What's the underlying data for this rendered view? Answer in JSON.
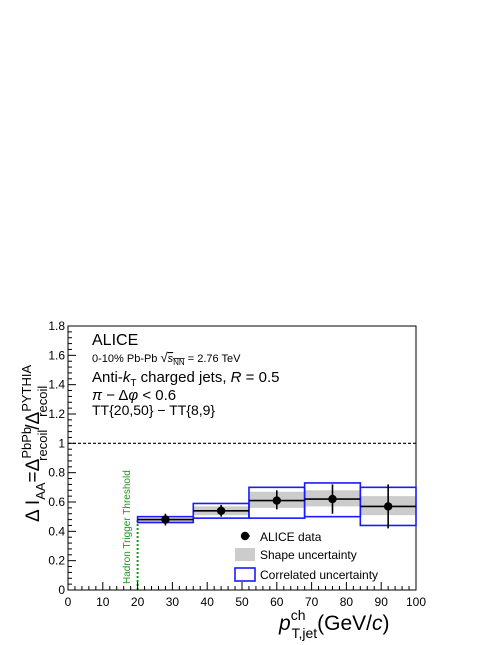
{
  "chart_data": {
    "type": "scatter",
    "xlabel": {
      "main": "p",
      "sup": "ch",
      "sub": "T,jet",
      "units_pre": "(GeV/",
      "units_it": "c",
      "units_post": ")"
    },
    "ylabel": {
      "pre": "Δ I",
      "sub_AA": "AA",
      "eq": "=Δ",
      "sup1": "PbPb",
      "sub1": "recoil",
      "slash": "/Δ",
      "sup2": "PYTHIA",
      "sub2": "recoil"
    },
    "xlim": [
      0,
      100
    ],
    "ylim": [
      0,
      1.8
    ],
    "x_ticks": [
      0,
      10,
      20,
      30,
      40,
      50,
      60,
      70,
      80,
      90,
      100
    ],
    "y_ticks": [
      0,
      0.2,
      0.4,
      0.6,
      0.8,
      1,
      1.2,
      1.4,
      1.6,
      1.8
    ],
    "x_tick_labels": [
      "0",
      "10",
      "20",
      "30",
      "40",
      "50",
      "60",
      "70",
      "80",
      "90",
      "100"
    ],
    "y_tick_labels": [
      "0",
      "0.2",
      "0.4",
      "0.6",
      "0.8",
      "1",
      "1.2",
      "1.4",
      "1.6",
      "1.8"
    ],
    "reference_line_y": 1,
    "threshold_x": 20,
    "threshold_label": "Hadron Trigger Threshold",
    "series": [
      {
        "name": "ALICE data",
        "points": [
          {
            "x": 28,
            "y": 0.48,
            "xlo": 20,
            "xhi": 36,
            "ylo": 0.44,
            "yhi": 0.52
          },
          {
            "x": 44,
            "y": 0.54,
            "xlo": 36,
            "xhi": 52,
            "ylo": 0.5,
            "yhi": 0.58
          },
          {
            "x": 60,
            "y": 0.61,
            "xlo": 52,
            "xhi": 68,
            "ylo": 0.55,
            "yhi": 0.68
          },
          {
            "x": 76,
            "y": 0.62,
            "xlo": 68,
            "xhi": 84,
            "ylo": 0.52,
            "yhi": 0.72
          },
          {
            "x": 92,
            "y": 0.57,
            "xlo": 84,
            "xhi": 100,
            "ylo": 0.42,
            "yhi": 0.72
          }
        ]
      },
      {
        "name": "Shape uncertainty",
        "boxes": [
          {
            "xlo": 20,
            "xhi": 36,
            "ylo": 0.46,
            "yhi": 0.49
          },
          {
            "xlo": 36,
            "xhi": 52,
            "ylo": 0.51,
            "yhi": 0.57
          },
          {
            "xlo": 52,
            "xhi": 68,
            "ylo": 0.56,
            "yhi": 0.67
          },
          {
            "xlo": 68,
            "xhi": 84,
            "ylo": 0.57,
            "yhi": 0.68
          },
          {
            "xlo": 84,
            "xhi": 100,
            "ylo": 0.51,
            "yhi": 0.64
          }
        ]
      },
      {
        "name": "Correlated uncertainty",
        "boxes": [
          {
            "xlo": 20,
            "xhi": 36,
            "ylo": 0.46,
            "yhi": 0.5
          },
          {
            "xlo": 36,
            "xhi": 52,
            "ylo": 0.49,
            "yhi": 0.59
          },
          {
            "xlo": 52,
            "xhi": 68,
            "ylo": 0.49,
            "yhi": 0.7
          },
          {
            "xlo": 68,
            "xhi": 84,
            "ylo": 0.5,
            "yhi": 0.73
          },
          {
            "xlo": 84,
            "xhi": 100,
            "ylo": 0.44,
            "yhi": 0.7
          }
        ]
      }
    ],
    "legend": {
      "position": "bottom-right",
      "entries": [
        "ALICE data",
        "Shape uncertainty",
        "Correlated uncertainty"
      ]
    },
    "colors": {
      "data": "#000000",
      "shape": "#cccccc",
      "correlated": "#1a1aff",
      "threshold": "#1a9a1a",
      "reference": "#000000"
    },
    "annotations": {
      "experiment": "ALICE",
      "line1_pre": "0-10% Pb-Pb ",
      "line1_sqrt": "√",
      "line1_s": "s",
      "line1_sub": "NN",
      "line1_post": " = 2.76 TeV",
      "line2_pre": "Anti-",
      "line2_k": "k",
      "line2_ksub": "T",
      "line2_mid": "  charged jets, ",
      "line2_R": "R",
      "line2_post": " = 0.5",
      "line3_pi": "π",
      "line3_mid": " − Δ",
      "line3_phi": "φ",
      "line3_post": " < 0.6",
      "line4": "TT{20,50} − TT{8,9}"
    }
  }
}
